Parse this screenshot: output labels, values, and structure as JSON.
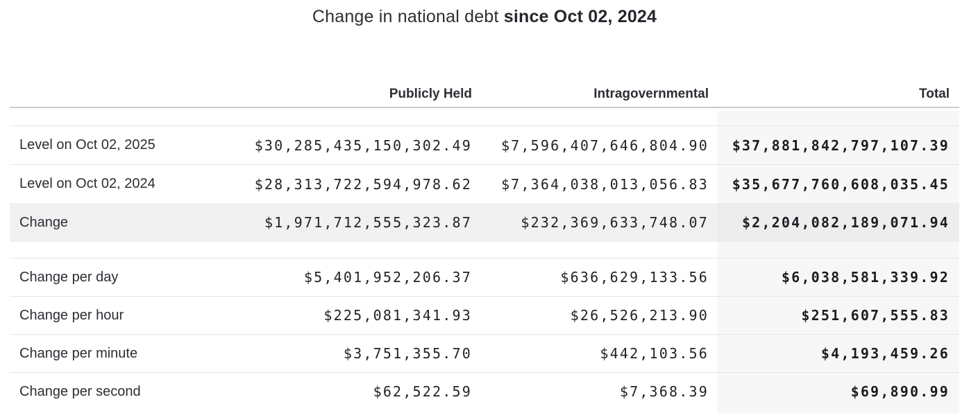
{
  "title": {
    "normal": "Change in national debt",
    "bold": "since Oct 02, 2024"
  },
  "table": {
    "columns": {
      "publicly_held": "Publicly Held",
      "intragovernmental": "Intragovernmental",
      "total": "Total"
    },
    "rows": [
      {
        "label": "Level on Oct 02, 2025",
        "publicly_held": "$30,285,435,150,302.49",
        "intragovernmental": "$7,596,407,646,804.90",
        "total": "$37,881,842,797,107.39"
      },
      {
        "label": "Level on Oct 02, 2024",
        "publicly_held": "$28,313,722,594,978.62",
        "intragovernmental": "$7,364,038,013,056.83",
        "total": "$35,677,760,608,035.45"
      },
      {
        "label": "Change",
        "publicly_held": "$1,971,712,555,323.87",
        "intragovernmental": "$232,369,633,748.07",
        "total": "$2,204,082,189,071.94"
      },
      {
        "label": "Change per day",
        "publicly_held": "$5,401,952,206.37",
        "intragovernmental": "$636,629,133.56",
        "total": "$6,038,581,339.92"
      },
      {
        "label": "Change per hour",
        "publicly_held": "$225,081,341.93",
        "intragovernmental": "$26,526,213.90",
        "total": "$251,607,555.83"
      },
      {
        "label": "Change per minute",
        "publicly_held": "$3,751,355.70",
        "intragovernmental": "$442,103.56",
        "total": "$4,193,459.26"
      },
      {
        "label": "Change per second",
        "publicly_held": "$62,522.59",
        "intragovernmental": "$7,368.39",
        "total": "$69,890.99"
      }
    ]
  },
  "colors": {
    "total_band": "#f7f7f8",
    "highlight_row": "#f1f1f2",
    "row_divider": "#e4e4e4",
    "header_divider": "#cbcbcb",
    "text": "#212529"
  }
}
